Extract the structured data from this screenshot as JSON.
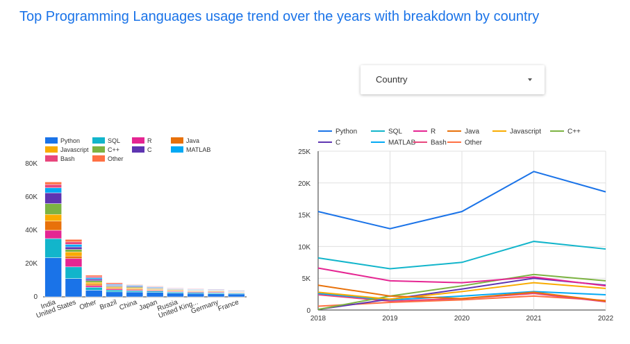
{
  "title": "Top Programming Languages usage trend over the years with breakdown by country",
  "dropdown": {
    "label": "Country",
    "icon": "chevron-down-icon"
  },
  "colors": {
    "Python": "#1a73e8",
    "SQL": "#12b5cb",
    "R": "#e52592",
    "Java": "#e8710a",
    "Javascript": "#f9ab00",
    "C++": "#7cb342",
    "C": "#5e35b1",
    "MATLAB": "#03a9f4",
    "Bash": "#e8467c",
    "Other": "#ff7043"
  },
  "chart_data": [
    {
      "type": "bar",
      "stacked": true,
      "categories": [
        "India",
        "United States",
        "Other",
        "Brazil",
        "China",
        "Japan",
        "Russia",
        "United King...",
        "Germany",
        "France"
      ],
      "ylim": [
        0,
        80000
      ],
      "yticks": [
        "0",
        "20K",
        "40K",
        "60K",
        "80K"
      ],
      "legend_position": "top",
      "series": [
        {
          "name": "Python",
          "values": [
            23500,
            11000,
            4000,
            3000,
            2900,
            2700,
            2200,
            2000,
            1800,
            1700
          ]
        },
        {
          "name": "SQL",
          "values": [
            11500,
            7000,
            1700,
            1100,
            800,
            800,
            700,
            600,
            600,
            500
          ]
        },
        {
          "name": "R",
          "values": [
            5000,
            5000,
            1000,
            600,
            500,
            400,
            400,
            400,
            400,
            300
          ]
        },
        {
          "name": "Java",
          "values": [
            5500,
            1500,
            1000,
            700,
            600,
            500,
            400,
            400,
            400,
            300
          ]
        },
        {
          "name": "Javascript",
          "values": [
            4000,
            2500,
            1000,
            500,
            600,
            400,
            400,
            300,
            300,
            200
          ]
        },
        {
          "name": "C++",
          "values": [
            6500,
            1500,
            1000,
            500,
            500,
            400,
            300,
            300,
            300,
            300
          ]
        },
        {
          "name": "C",
          "values": [
            6500,
            1500,
            1000,
            500,
            500,
            400,
            300,
            300,
            300,
            300
          ]
        },
        {
          "name": "MATLAB",
          "values": [
            3000,
            1500,
            800,
            500,
            500,
            400,
            300,
            300,
            300,
            300
          ]
        },
        {
          "name": "Bash",
          "values": [
            2000,
            1500,
            700,
            500,
            300,
            300,
            300,
            300,
            300,
            200
          ]
        },
        {
          "name": "Other",
          "values": [
            1500,
            1500,
            800,
            600,
            300,
            300,
            200,
            200,
            200,
            200
          ]
        }
      ]
    },
    {
      "type": "line",
      "x": [
        "2018",
        "2019",
        "2020",
        "2021",
        "2022"
      ],
      "ylim": [
        0,
        25000
      ],
      "yticks": [
        "0",
        "5K",
        "10K",
        "15K",
        "20K",
        "25K"
      ],
      "legend_position": "top",
      "series": [
        {
          "name": "Python",
          "values": [
            15500,
            12800,
            15500,
            21800,
            18600
          ]
        },
        {
          "name": "SQL",
          "values": [
            8200,
            6500,
            7500,
            10800,
            9600
          ]
        },
        {
          "name": "R",
          "values": [
            6600,
            4600,
            4300,
            5200,
            3800
          ]
        },
        {
          "name": "Java",
          "values": [
            3900,
            2200,
            1800,
            2800,
            1400
          ]
        },
        {
          "name": "Javascript",
          "values": [
            2800,
            1700,
            2900,
            4300,
            3400
          ]
        },
        {
          "name": "C++",
          "values": [
            100,
            2200,
            3800,
            5600,
            4600
          ]
        },
        {
          "name": "C",
          "values": [
            100,
            1700,
            3300,
            5000,
            3900
          ]
        },
        {
          "name": "MATLAB",
          "values": [
            2600,
            1600,
            2200,
            2900,
            2400
          ]
        },
        {
          "name": "Bash",
          "values": [
            2400,
            1400,
            1800,
            2600,
            1300
          ]
        },
        {
          "name": "Other",
          "values": [
            600,
            1200,
            1600,
            2200,
            1500
          ]
        }
      ]
    }
  ]
}
